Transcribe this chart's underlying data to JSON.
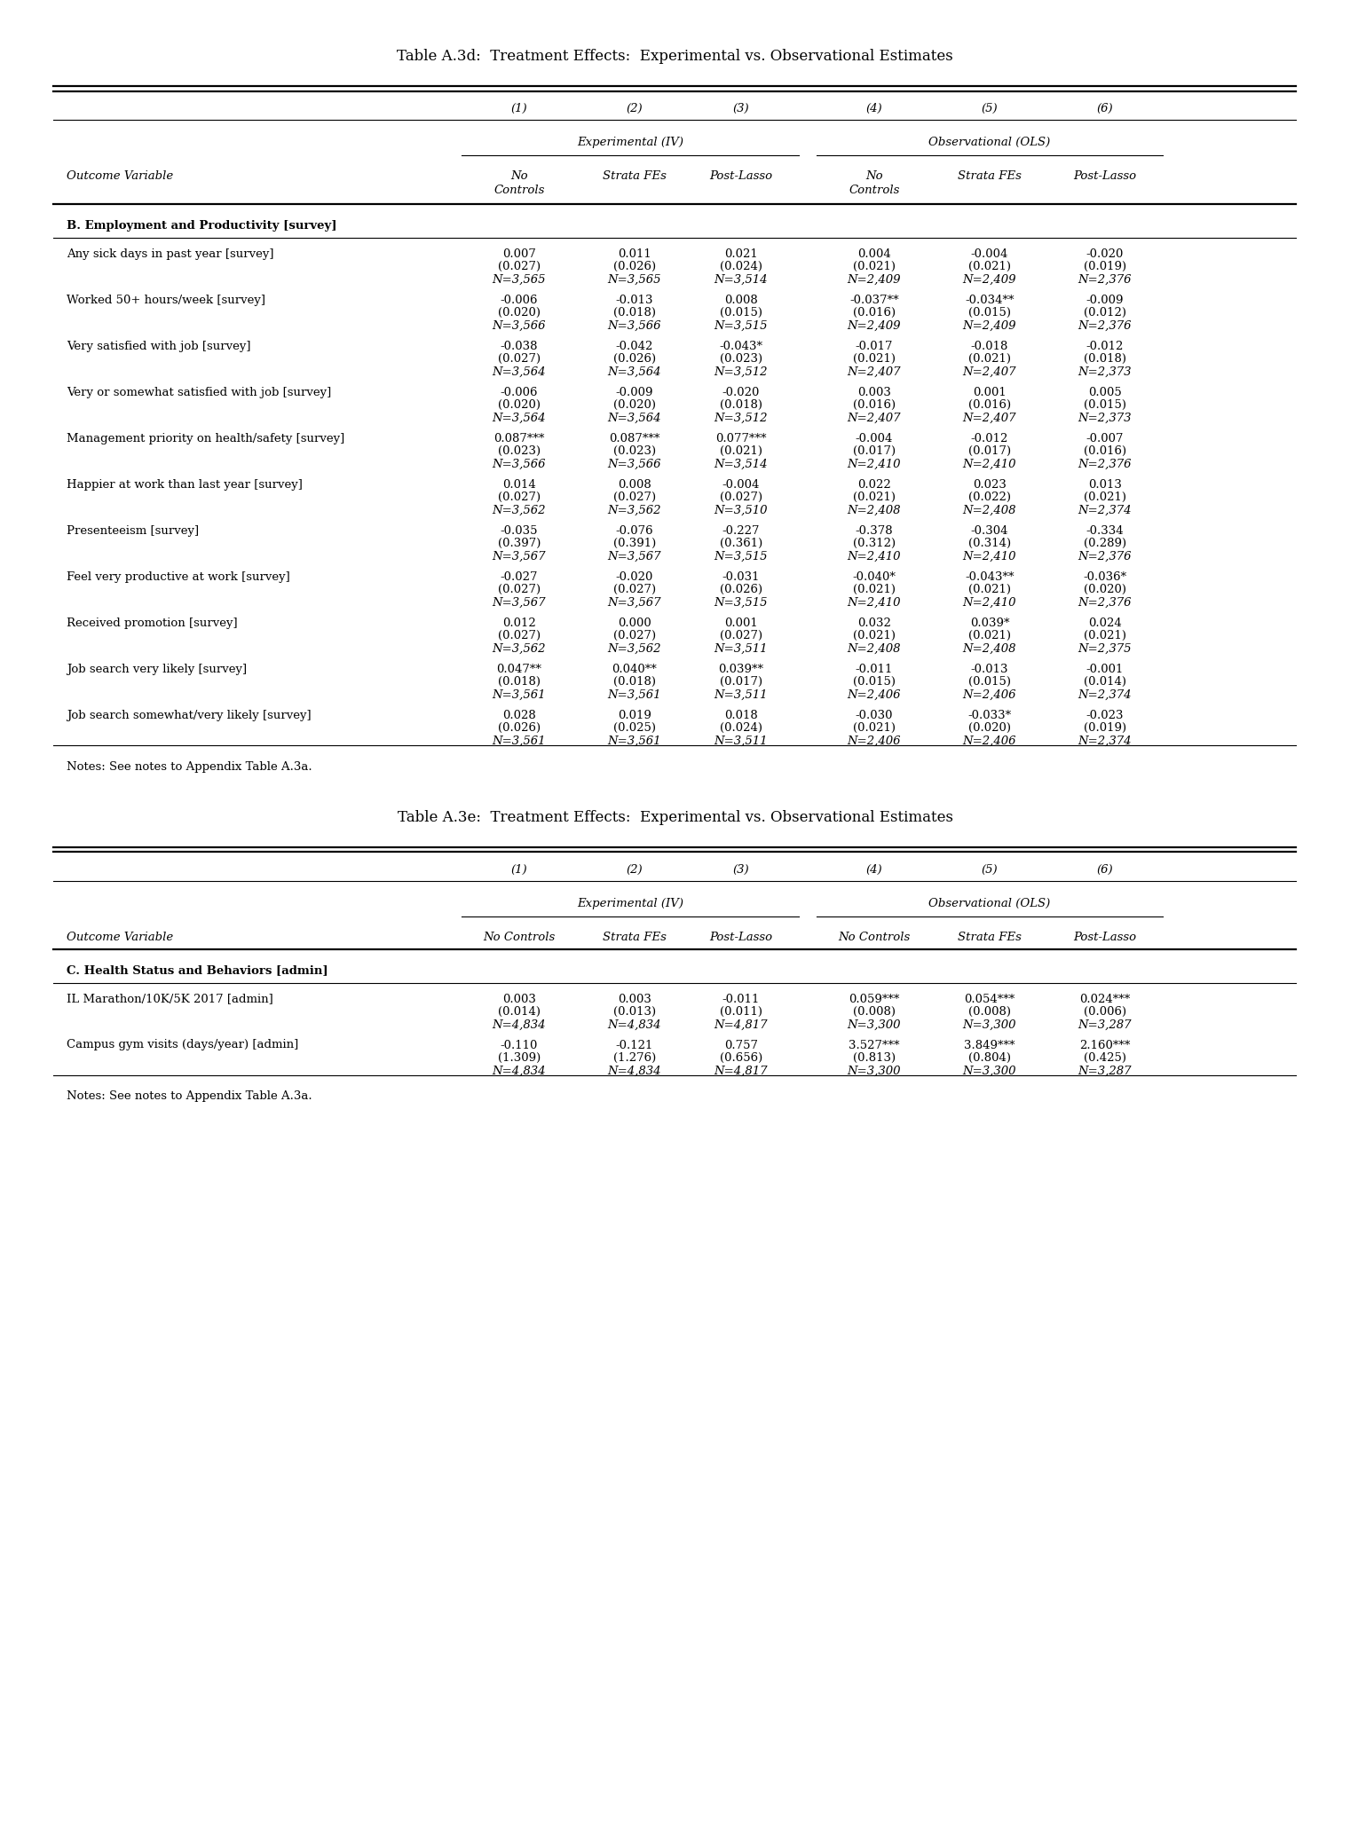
{
  "table_d_title": "Table A.3d:  Treatment Effects:  Experimental vs. Observational Estimates",
  "table_e_title": "Table A.3e:  Treatment Effects:  Experimental vs. Observational Estimates",
  "col_headers_row1": [
    "(1)",
    "(2)",
    "(3)",
    "(4)",
    "(5)",
    "(6)"
  ],
  "col_headers_row2_exp": "Experimental (IV)",
  "col_headers_row2_obs": "Observational (OLS)",
  "outcome_label": "Outcome Variable",
  "section_d_label": "B. Employment and Productivity [survey]",
  "rows_d": [
    {
      "label": "Any sick days in past year [survey]",
      "vals": [
        "0.007",
        "0.011",
        "0.021",
        "0.004",
        "-0.004",
        "-0.020"
      ],
      "ses": [
        "(0.027)",
        "(0.026)",
        "(0.024)",
        "(0.021)",
        "(0.021)",
        "(0.019)"
      ],
      "ns": [
        "N=3,565",
        "N=3,565",
        "N=3,514",
        "N=2,409",
        "N=2,409",
        "N=2,376"
      ]
    },
    {
      "label": "Worked 50+ hours/week [survey]",
      "vals": [
        "-0.006",
        "-0.013",
        "0.008",
        "-0.037**",
        "-0.034**",
        "-0.009"
      ],
      "ses": [
        "(0.020)",
        "(0.018)",
        "(0.015)",
        "(0.016)",
        "(0.015)",
        "(0.012)"
      ],
      "ns": [
        "N=3,566",
        "N=3,566",
        "N=3,515",
        "N=2,409",
        "N=2,409",
        "N=2,376"
      ]
    },
    {
      "label": "Very satisfied with job [survey]",
      "vals": [
        "-0.038",
        "-0.042",
        "-0.043*",
        "-0.017",
        "-0.018",
        "-0.012"
      ],
      "ses": [
        "(0.027)",
        "(0.026)",
        "(0.023)",
        "(0.021)",
        "(0.021)",
        "(0.018)"
      ],
      "ns": [
        "N=3,564",
        "N=3,564",
        "N=3,512",
        "N=2,407",
        "N=2,407",
        "N=2,373"
      ]
    },
    {
      "label": "Very or somewhat satisfied with job [survey]",
      "vals": [
        "-0.006",
        "-0.009",
        "-0.020",
        "0.003",
        "0.001",
        "0.005"
      ],
      "ses": [
        "(0.020)",
        "(0.020)",
        "(0.018)",
        "(0.016)",
        "(0.016)",
        "(0.015)"
      ],
      "ns": [
        "N=3,564",
        "N=3,564",
        "N=3,512",
        "N=2,407",
        "N=2,407",
        "N=2,373"
      ]
    },
    {
      "label": "Management priority on health/safety [survey]",
      "vals": [
        "0.087***",
        "0.087***",
        "0.077***",
        "-0.004",
        "-0.012",
        "-0.007"
      ],
      "ses": [
        "(0.023)",
        "(0.023)",
        "(0.021)",
        "(0.017)",
        "(0.017)",
        "(0.016)"
      ],
      "ns": [
        "N=3,566",
        "N=3,566",
        "N=3,514",
        "N=2,410",
        "N=2,410",
        "N=2,376"
      ]
    },
    {
      "label": "Happier at work than last year [survey]",
      "vals": [
        "0.014",
        "0.008",
        "-0.004",
        "0.022",
        "0.023",
        "0.013"
      ],
      "ses": [
        "(0.027)",
        "(0.027)",
        "(0.027)",
        "(0.021)",
        "(0.022)",
        "(0.021)"
      ],
      "ns": [
        "N=3,562",
        "N=3,562",
        "N=3,510",
        "N=2,408",
        "N=2,408",
        "N=2,374"
      ]
    },
    {
      "label": "Presenteeism [survey]",
      "vals": [
        "-0.035",
        "-0.076",
        "-0.227",
        "-0.378",
        "-0.304",
        "-0.334"
      ],
      "ses": [
        "(0.397)",
        "(0.391)",
        "(0.361)",
        "(0.312)",
        "(0.314)",
        "(0.289)"
      ],
      "ns": [
        "N=3,567",
        "N=3,567",
        "N=3,515",
        "N=2,410",
        "N=2,410",
        "N=2,376"
      ]
    },
    {
      "label": "Feel very productive at work [survey]",
      "vals": [
        "-0.027",
        "-0.020",
        "-0.031",
        "-0.040*",
        "-0.043**",
        "-0.036*"
      ],
      "ses": [
        "(0.027)",
        "(0.027)",
        "(0.026)",
        "(0.021)",
        "(0.021)",
        "(0.020)"
      ],
      "ns": [
        "N=3,567",
        "N=3,567",
        "N=3,515",
        "N=2,410",
        "N=2,410",
        "N=2,376"
      ]
    },
    {
      "label": "Received promotion [survey]",
      "vals": [
        "0.012",
        "0.000",
        "0.001",
        "0.032",
        "0.039*",
        "0.024"
      ],
      "ses": [
        "(0.027)",
        "(0.027)",
        "(0.027)",
        "(0.021)",
        "(0.021)",
        "(0.021)"
      ],
      "ns": [
        "N=3,562",
        "N=3,562",
        "N=3,511",
        "N=2,408",
        "N=2,408",
        "N=2,375"
      ]
    },
    {
      "label": "Job search very likely [survey]",
      "vals": [
        "0.047**",
        "0.040**",
        "0.039**",
        "-0.011",
        "-0.013",
        "-0.001"
      ],
      "ses": [
        "(0.018)",
        "(0.018)",
        "(0.017)",
        "(0.015)",
        "(0.015)",
        "(0.014)"
      ],
      "ns": [
        "N=3,561",
        "N=3,561",
        "N=3,511",
        "N=2,406",
        "N=2,406",
        "N=2,374"
      ]
    },
    {
      "label": "Job search somewhat/very likely [survey]",
      "vals": [
        "0.028",
        "0.019",
        "0.018",
        "-0.030",
        "-0.033*",
        "-0.023"
      ],
      "ses": [
        "(0.026)",
        "(0.025)",
        "(0.024)",
        "(0.021)",
        "(0.020)",
        "(0.019)"
      ],
      "ns": [
        "N=3,561",
        "N=3,561",
        "N=3,511",
        "N=2,406",
        "N=2,406",
        "N=2,374"
      ]
    }
  ],
  "notes_d": "Notes: See notes to Appendix Table A.3a.",
  "section_e_label": "C. Health Status and Behaviors [admin]",
  "rows_e": [
    {
      "label": "IL Marathon/10K/5K 2017 [admin]",
      "vals": [
        "0.003",
        "0.003",
        "-0.011",
        "0.059***",
        "0.054***",
        "0.024***"
      ],
      "ses": [
        "(0.014)",
        "(0.013)",
        "(0.011)",
        "(0.008)",
        "(0.008)",
        "(0.006)"
      ],
      "ns": [
        "N=4,834",
        "N=4,834",
        "N=4,817",
        "N=3,300",
        "N=3,300",
        "N=3,287"
      ]
    },
    {
      "label": "Campus gym visits (days/year) [admin]",
      "vals": [
        "-0.110",
        "-0.121",
        "0.757",
        "3.527***",
        "3.849***",
        "2.160***"
      ],
      "ses": [
        "(1.309)",
        "(1.276)",
        "(0.656)",
        "(0.813)",
        "(0.804)",
        "(0.425)"
      ],
      "ns": [
        "N=4,834",
        "N=4,834",
        "N=4,817",
        "N=3,300",
        "N=3,300",
        "N=3,287"
      ]
    }
  ],
  "notes_e": "Notes: See notes to Appendix Table A.3a.",
  "fig_width": 15.21,
  "fig_height": 20.57,
  "dpi": 100
}
